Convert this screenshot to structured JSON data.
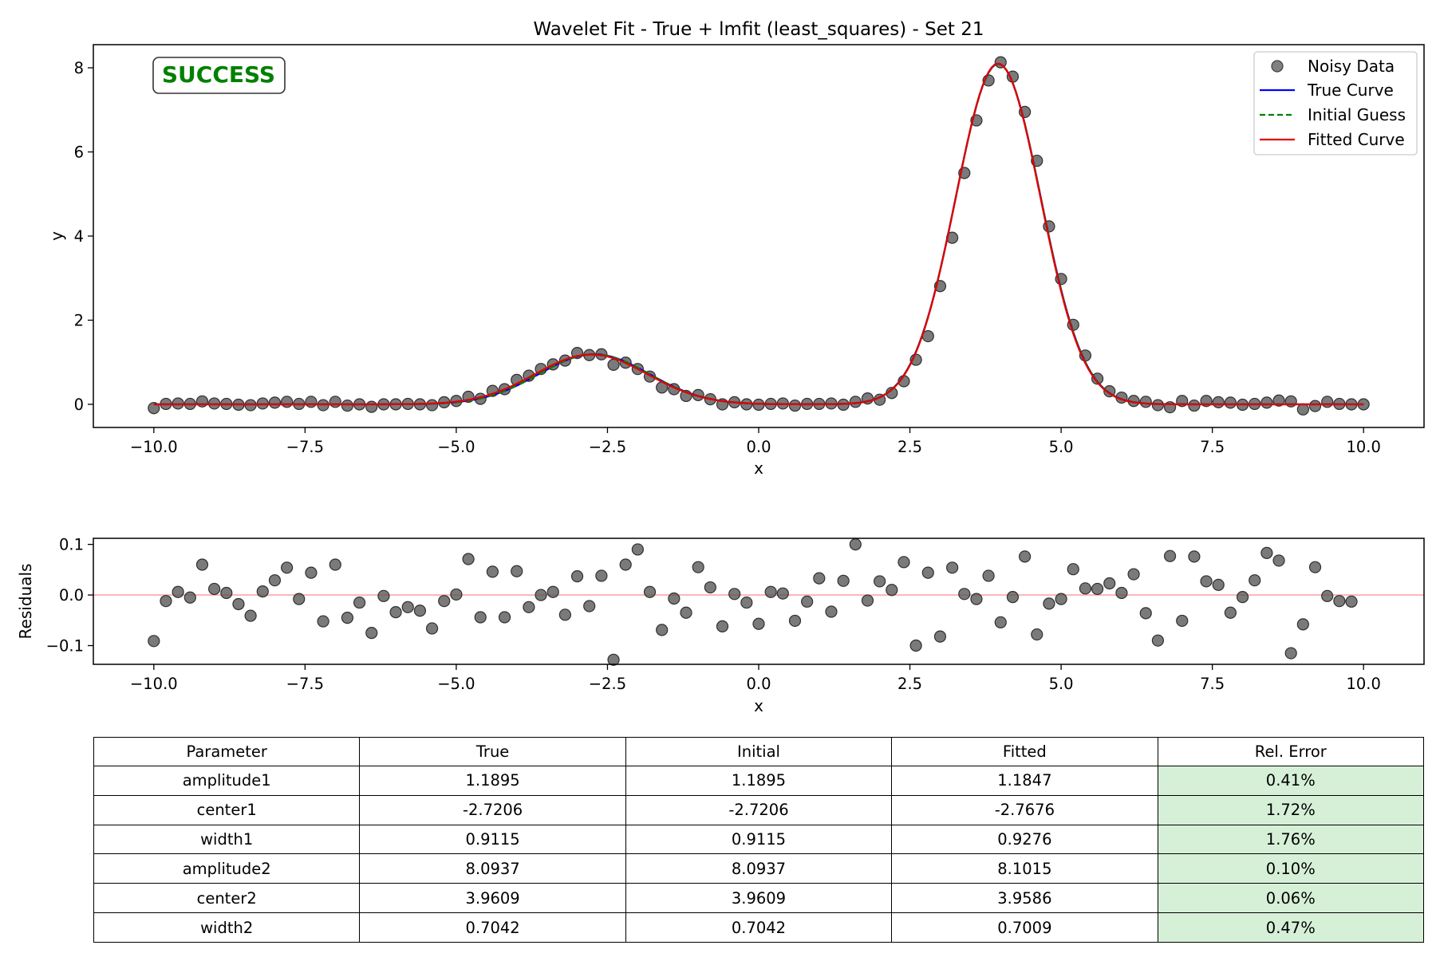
{
  "chart_data": [
    {
      "type": "scatter",
      "title": "Wavelet Fit - True + lmfit (least_squares) - Set 21",
      "xlabel": "x",
      "ylabel": "y",
      "xlim": [
        -11.0,
        11.0
      ],
      "ylim": [
        -0.55,
        8.55
      ],
      "xticks": [
        -10,
        -7.5,
        -5,
        -2.5,
        0,
        2.5,
        5,
        7.5,
        10
      ],
      "xtick_labels": [
        "−10.0",
        "−7.5",
        "−5.0",
        "−2.5",
        "0.0",
        "2.5",
        "5.0",
        "7.5",
        "10.0"
      ],
      "yticks": [
        0,
        2,
        4,
        6,
        8
      ],
      "ytick_labels": [
        "0",
        "2",
        "4",
        "6",
        "8"
      ],
      "grid": false,
      "legend_position": "top-right",
      "badge": {
        "text": "SUCCESS",
        "color": "#008000"
      },
      "series": [
        {
          "name": "Noisy Data",
          "kind": "points",
          "color": "#555555",
          "x_start": -10,
          "x_step": 0.2,
          "values": [
            -0.09,
            0.01,
            0.02,
            0.01,
            0.07,
            0.02,
            0.01,
            -0.01,
            -0.02,
            0.02,
            0.04,
            0.06,
            0.01,
            0.06,
            -0.02,
            0.06,
            -0.03,
            0.0,
            -0.06,
            0.0,
            0.0,
            0.01,
            0.0,
            -0.02,
            0.05,
            0.08,
            0.18,
            0.13,
            0.32,
            0.36,
            0.58,
            0.68,
            0.84,
            0.95,
            1.04,
            1.22,
            1.17,
            1.19,
            0.94,
            0.99,
            0.84,
            0.66,
            0.4,
            0.36,
            0.2,
            0.22,
            0.12,
            0.0,
            0.05,
            0.0,
            -0.01,
            0.01,
            0.02,
            -0.03,
            0.01,
            0.01,
            0.02,
            -0.01,
            0.06,
            0.14,
            0.11,
            0.27,
            0.55,
            1.06,
            1.62,
            2.81,
            3.96,
            5.5,
            6.75,
            7.7,
            8.13,
            7.79,
            6.95,
            5.79,
            4.23,
            2.98,
            1.89,
            1.16,
            0.61,
            0.31,
            0.16,
            0.08,
            0.06,
            -0.02,
            -0.07,
            0.08,
            -0.03,
            0.08,
            0.05,
            0.04,
            -0.01,
            0.01,
            0.04,
            0.09,
            0.07,
            -0.12,
            -0.04,
            0.06,
            0.01,
            0.0,
            0.0
          ]
        },
        {
          "name": "True Curve",
          "kind": "line",
          "color": "#0000ff",
          "dash": "solid",
          "model": "gaussian_sum",
          "params": {
            "amplitude1": 1.1895,
            "center1": -2.7206,
            "width1": 0.9115,
            "amplitude2": 8.0937,
            "center2": 3.9609,
            "width2": 0.7042
          }
        },
        {
          "name": "Initial Guess",
          "kind": "line",
          "color": "#008000",
          "dash": "dashed",
          "model": "gaussian_sum",
          "params": {
            "amplitude1": 1.1895,
            "center1": -2.7206,
            "width1": 0.9115,
            "amplitude2": 8.0937,
            "center2": 3.9609,
            "width2": 0.7042
          }
        },
        {
          "name": "Fitted Curve",
          "kind": "line",
          "color": "#e00000",
          "dash": "solid",
          "model": "gaussian_sum",
          "params": {
            "amplitude1": 1.1847,
            "center1": -2.7676,
            "width1": 0.9276,
            "amplitude2": 8.1015,
            "center2": 3.9586,
            "width2": 0.7009
          }
        }
      ]
    },
    {
      "type": "scatter",
      "title": "",
      "xlabel": "x",
      "ylabel": "Residuals",
      "xlim": [
        -11.0,
        11.0
      ],
      "ylim": [
        -0.137,
        0.112
      ],
      "xticks": [
        -10,
        -7.5,
        -5,
        -2.5,
        0,
        2.5,
        5,
        7.5,
        10
      ],
      "xtick_labels": [
        "−10.0",
        "−7.5",
        "−5.0",
        "−2.5",
        "0.0",
        "2.5",
        "5.0",
        "7.5",
        "10.0"
      ],
      "yticks": [
        0.1,
        0.0,
        -0.1
      ],
      "ytick_labels": [
        "0.1",
        "0.0",
        "−0.1"
      ],
      "grid": false,
      "zero_line_color": "#ffb3b3",
      "series": [
        {
          "name": "",
          "kind": "points",
          "color": "#555555",
          "x_start": -10,
          "x_step": 0.2,
          "values": [
            -0.091,
            -0.012,
            0.006,
            -0.005,
            0.06,
            0.012,
            0.004,
            -0.018,
            -0.041,
            0.007,
            0.029,
            0.054,
            -0.008,
            0.044,
            -0.052,
            0.06,
            -0.045,
            -0.015,
            -0.075,
            -0.002,
            -0.034,
            -0.024,
            -0.031,
            -0.066,
            -0.012,
            0.001,
            0.071,
            -0.044,
            0.046,
            -0.044,
            0.047,
            -0.024,
            0.0,
            0.006,
            -0.039,
            0.037,
            -0.022,
            0.038,
            -0.128,
            0.06,
            0.09,
            0.006,
            -0.069,
            -0.007,
            -0.035,
            0.055,
            0.015,
            -0.062,
            0.002,
            -0.015,
            -0.057,
            0.006,
            0.003,
            -0.051,
            -0.013,
            0.033,
            -0.033,
            0.028,
            0.1,
            -0.011,
            0.027,
            0.01,
            0.065,
            -0.1,
            0.044,
            -0.082,
            0.054,
            0.002,
            -0.008,
            0.038,
            -0.054,
            -0.004,
            0.076,
            -0.078,
            -0.017,
            -0.008,
            0.051,
            0.013,
            0.012,
            0.023,
            0.004,
            0.041,
            -0.036,
            -0.09,
            0.077,
            -0.051,
            0.076,
            0.027,
            0.02,
            -0.035,
            -0.004,
            0.029,
            0.083,
            0.068,
            -0.115,
            -0.058,
            0.055,
            -0.002,
            -0.012,
            -0.013
          ]
        }
      ]
    },
    {
      "type": "table",
      "columns": [
        "Parameter",
        "True",
        "Initial",
        "Fitted",
        "Rel. Error"
      ],
      "rows": [
        [
          "amplitude1",
          "1.1895",
          "1.1895",
          "1.1847",
          "0.41%"
        ],
        [
          "center1",
          "-2.7206",
          "-2.7206",
          "-2.7676",
          "1.72%"
        ],
        [
          "width1",
          "0.9115",
          "0.9115",
          "0.9276",
          "1.76%"
        ],
        [
          "amplitude2",
          "8.0937",
          "8.0937",
          "8.1015",
          "0.10%"
        ],
        [
          "center2",
          "3.9609",
          "3.9609",
          "3.9586",
          "0.06%"
        ],
        [
          "width2",
          "0.7042",
          "0.7042",
          "0.7009",
          "0.47%"
        ]
      ],
      "error_cell_color": "#d6f0d8"
    }
  ]
}
